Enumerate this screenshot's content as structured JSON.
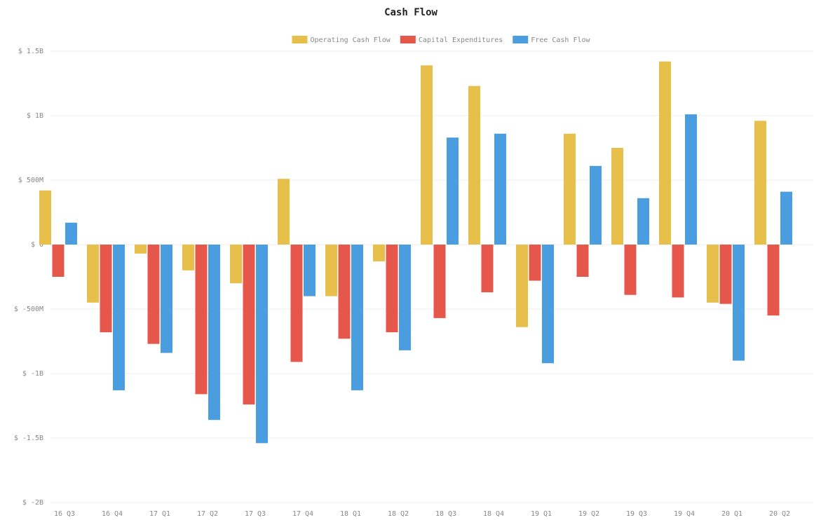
{
  "chart_data": {
    "type": "bar",
    "title": "Cash Flow",
    "categories": [
      "16 Q3",
      "16 Q4",
      "17 Q1",
      "17 Q2",
      "17 Q3",
      "17 Q4",
      "18 Q1",
      "18 Q2",
      "18 Q3",
      "18 Q4",
      "19 Q1",
      "19 Q2",
      "19 Q3",
      "19 Q4",
      "20 Q1",
      "20 Q2"
    ],
    "series": [
      {
        "name": "Operating Cash Flow",
        "color": "#e6c04a",
        "values": [
          420000000,
          -450000000,
          -70000000,
          -200000000,
          -300000000,
          510000000,
          -400000000,
          -130000000,
          1390000000,
          1230000000,
          -640000000,
          860000000,
          750000000,
          1420000000,
          -450000000,
          960000000
        ]
      },
      {
        "name": "Capital Expenditures",
        "color": "#e5574a",
        "values": [
          -250000000,
          -680000000,
          -770000000,
          -1160000000,
          -1240000000,
          -910000000,
          -730000000,
          -680000000,
          -570000000,
          -370000000,
          -280000000,
          -250000000,
          -390000000,
          -410000000,
          -460000000,
          -550000000
        ]
      },
      {
        "name": "Free Cash Flow",
        "color": "#4a9ee0",
        "values": [
          170000000,
          -1130000000,
          -840000000,
          -1360000000,
          -1540000000,
          -400000000,
          -1130000000,
          -820000000,
          830000000,
          860000000,
          -920000000,
          610000000,
          360000000,
          1010000000,
          -900000000,
          410000000
        ]
      }
    ],
    "ylim": [
      -2000000000,
      1500000000
    ],
    "yticks": [
      {
        "value": -2000000000,
        "label": "$ -2B"
      },
      {
        "value": -1500000000,
        "label": "$ -1.5B"
      },
      {
        "value": -1000000000,
        "label": "$ -1B"
      },
      {
        "value": -500000000,
        "label": "$ -500M"
      },
      {
        "value": 0,
        "label": "$ 0"
      },
      {
        "value": 500000000,
        "label": "$ 500M"
      },
      {
        "value": 1000000000,
        "label": "$ 1B"
      },
      {
        "value": 1500000000,
        "label": "$ 1.5B"
      }
    ],
    "grid": true,
    "legend": "top"
  }
}
